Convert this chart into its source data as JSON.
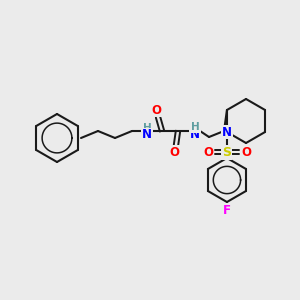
{
  "background_color": "#ebebeb",
  "bond_color": "#1a1a1a",
  "atom_colors": {
    "N": "#0000ff",
    "O": "#ff0000",
    "F": "#ff00ff",
    "S": "#cccc00",
    "H": "#5f9ea0",
    "C": "#1a1a1a"
  },
  "figsize": [
    3.0,
    3.0
  ],
  "dpi": 100
}
